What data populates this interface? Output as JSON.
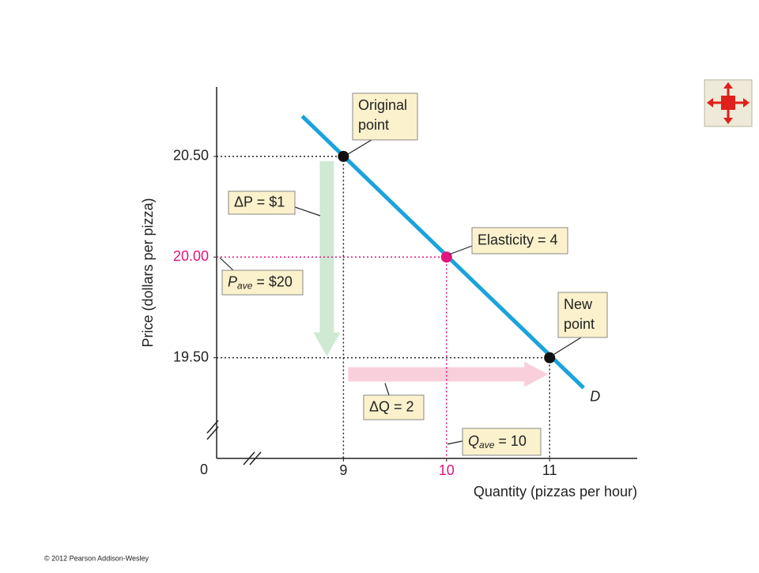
{
  "chart_data": {
    "type": "line",
    "xlabel": "Quantity (pizzas per hour)",
    "ylabel": "Price (dollars per pizza)",
    "xlim": [
      7.77,
      11.85
    ],
    "ylim": [
      19.0,
      20.845
    ],
    "xticks": [
      9,
      10,
      11
    ],
    "yticks": [
      {
        "value": 19.5,
        "label": "19.50"
      },
      {
        "value": 20,
        "label": "20.00"
      },
      {
        "value": 20.5,
        "label": "20.50"
      }
    ],
    "origin_label": "0",
    "highlight_color": "#e3157c",
    "demand": {
      "name": "D",
      "color": "#1aa3dc",
      "x": [
        8.6,
        11.33
      ],
      "y": [
        20.7,
        19.35
      ]
    },
    "points": {
      "x": [
        9,
        10,
        11
      ],
      "y": [
        20.5,
        20,
        19.5
      ],
      "colors": [
        "#111111",
        "#e3157c",
        "#111111"
      ]
    },
    "annotations": [
      {
        "text": "Original",
        "text2": "point"
      },
      {
        "text": "Elasticity = 4"
      },
      {
        "text": "New",
        "text2": "point"
      },
      {
        "text": "ΔP = $1"
      },
      {
        "text": "P",
        "sub": "ave",
        "rest": " = $20"
      },
      {
        "text": "ΔQ = 2"
      },
      {
        "text": "Q",
        "sub": "ave",
        "rest": " = 10"
      }
    ],
    "arrow_colors": {
      "price": "#cfe9d3",
      "quantity": "#f9cfdc"
    }
  },
  "footer": "© 2012 Pearson Addison-Wesley"
}
